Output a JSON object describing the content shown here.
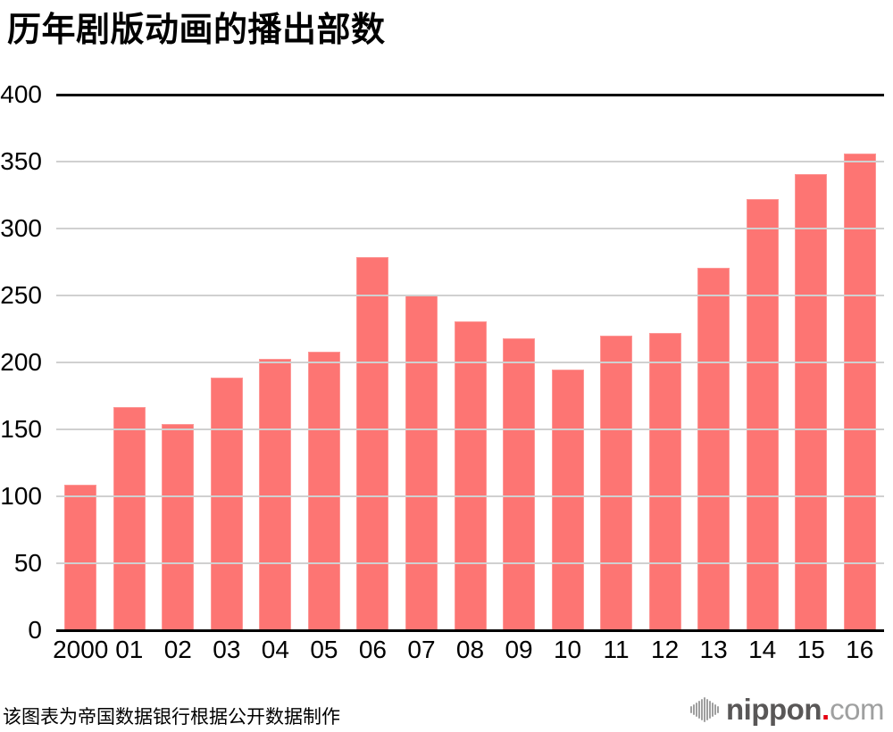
{
  "title": "历年剧版动画的播出部数",
  "footer": {
    "source_note": "该图表为帝国数据银行根据公开数据制作",
    "logo": {
      "icon": "soundwave-icon",
      "name_bold": "nippon",
      "dot": ".",
      "name_light": "com"
    }
  },
  "colors": {
    "bar": "#fd7573",
    "grid_minor": "#d0d0d0",
    "grid_major": "#000000",
    "text": "#000000",
    "logo_dark": "#595757",
    "logo_light": "#9fa0a0",
    "logo_dot": "#e60012",
    "logo_icon": "#9f9f9f"
  },
  "chart_data": {
    "type": "bar",
    "title": "历年剧版动画的播出部数",
    "categories": [
      "2000",
      "01",
      "02",
      "03",
      "04",
      "05",
      "06",
      "07",
      "08",
      "09",
      "10",
      "11",
      "12",
      "13",
      "14",
      "15",
      "16"
    ],
    "values": [
      109,
      167,
      154,
      189,
      203,
      208,
      279,
      250,
      231,
      218,
      195,
      220,
      222,
      271,
      322,
      341,
      356
    ],
    "xlabel": "",
    "ylabel": "",
    "ylim": [
      0,
      400
    ],
    "yticks": [
      0,
      50,
      100,
      150,
      200,
      250,
      300,
      350,
      400
    ],
    "grid": true,
    "legend": false,
    "source_note": "该图表为帝国数据银行根据公开数据制作"
  }
}
